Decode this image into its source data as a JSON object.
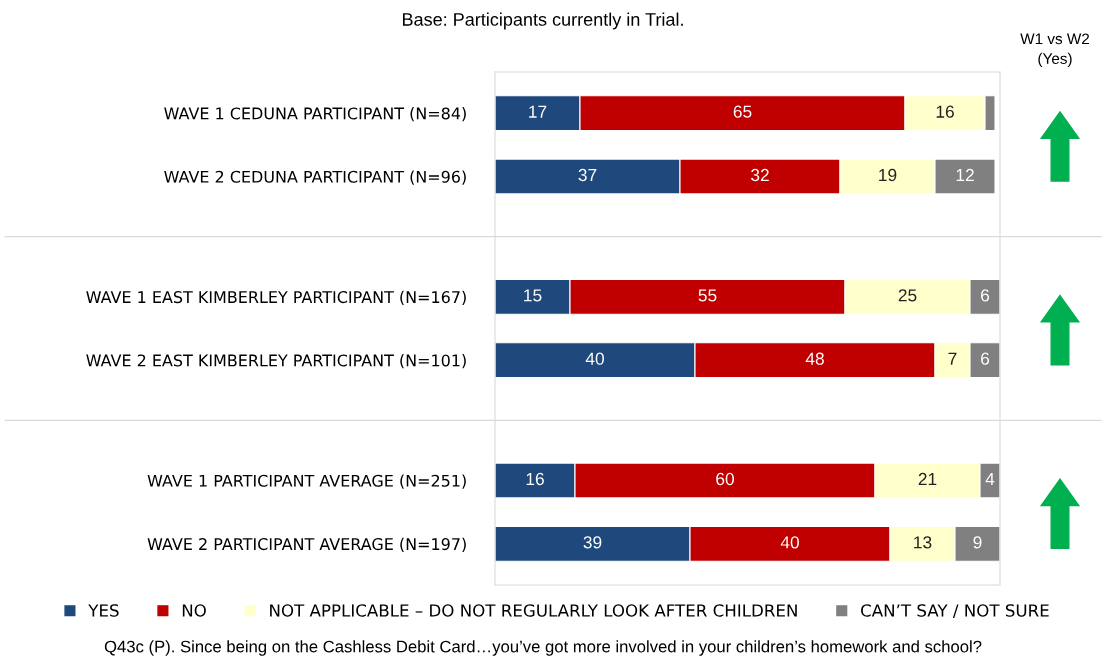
{
  "chart_data": {
    "type": "bar",
    "orientation": "horizontal",
    "stacked": true,
    "subtitle": "Base: Participants currently in Trial.",
    "annotations": [
      "W1 vs W2\n(Yes)",
      "Q43c (P). Since being on the Cashless Debit Card…you’ve got more involved in your children’s homework and school?"
    ],
    "categories": [
      "WAVE 1 CEDUNA PARTICIPANT (N=84)",
      "WAVE 2 CEDUNA PARTICIPANT (N=96)",
      "WAVE 1 EAST KIMBERLEY PARTICIPANT (N=167)",
      "WAVE 2 EAST KIMBERLEY PARTICIPANT (N=101)",
      "WAVE 1 PARTICIPANT AVERAGE (N=251)",
      "WAVE 2 PARTICIPANT AVERAGE (N=197)"
    ],
    "series": [
      {
        "name": "YES",
        "color": "#1f497d",
        "values": [
          17,
          37,
          15,
          40,
          16,
          39
        ]
      },
      {
        "name": "NO",
        "color": "#c00000",
        "values": [
          65,
          32,
          55,
          48,
          60,
          40
        ]
      },
      {
        "name": "NOT APPLICABLE – DO NOT REGULARLY LOOK AFTER CHILDREN",
        "color": "#ffffcc",
        "values": [
          16,
          19,
          25,
          7,
          21,
          13
        ]
      },
      {
        "name": "CAN’T SAY / NOT SURE",
        "color": "#808080",
        "values": [
          2,
          12,
          6,
          6,
          4,
          9
        ],
        "value_labels": [
          null,
          "12",
          "6",
          "6",
          "4",
          "9"
        ]
      }
    ],
    "data_labels": true,
    "legend": "bottom",
    "grid": false
  }
}
